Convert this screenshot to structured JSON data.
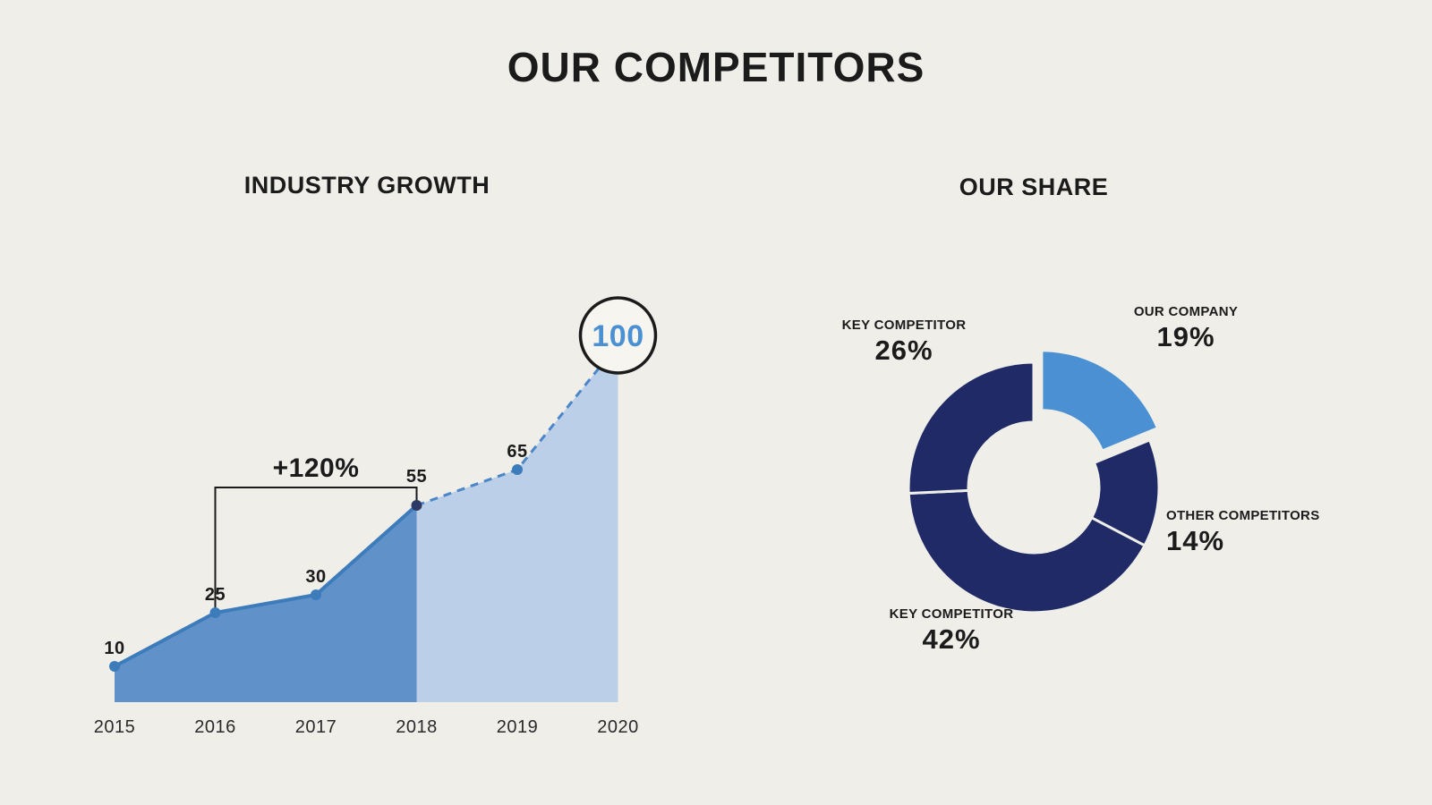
{
  "page": {
    "title": "OUR COMPETITORS",
    "background": "#efeee9"
  },
  "chart_data": [
    {
      "type": "area",
      "title": "INDUSTRY GROWTH",
      "x": [
        "2015",
        "2016",
        "2017",
        "2018",
        "2019",
        "2020"
      ],
      "values": [
        10,
        25,
        30,
        55,
        65,
        100
      ],
      "solid_until_index": 3,
      "annotation": {
        "text": "+120%",
        "from_index": 1,
        "to_index": 3
      },
      "highlight": {
        "index": 5,
        "label": "100"
      },
      "ylim": [
        0,
        110
      ],
      "legend": "values 2015-2018 actual (solid), 2018-2020 projected (dashed)",
      "colors": {
        "solid_area": "#6191c9",
        "solid_line": "#3c7cbb",
        "projected_area": "#bccfe8",
        "projected_line": "#4a86c8",
        "axis_text": "#2a2a2a",
        "annotation_line": "#1b1b1b",
        "highlight_text": "#4a90d2"
      }
    },
    {
      "type": "pie",
      "donut": true,
      "title": "OUR SHARE",
      "start_angle_deg": 0,
      "slices": [
        {
          "label": "OUR COMPANY",
          "value": 19,
          "display": "19%",
          "color": "#4a90d2",
          "exploded": true
        },
        {
          "label": "OTHER COMPETITORS",
          "value": 14,
          "display": "14%",
          "color": "#1f2a66",
          "exploded": false
        },
        {
          "label": "KEY COMPETITOR",
          "value": 42,
          "display": "42%",
          "color": "#1f2a66",
          "exploded": false
        },
        {
          "label": "KEY COMPETITOR",
          "value": 26,
          "display": "26%",
          "color": "#1f2a66",
          "exploded": false
        }
      ]
    }
  ]
}
